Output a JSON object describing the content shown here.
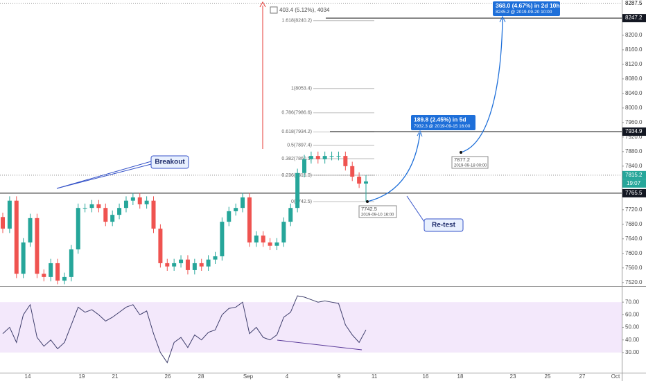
{
  "chart_data": {
    "type": "candlestick",
    "open": [
      7700,
      7668,
      7745,
      7544,
      7630,
      7697,
      7544,
      7535,
      7573,
      7525,
      7535,
      7611,
      7725,
      7725,
      7735,
      7725,
      7687,
      7706,
      7725,
      7745,
      7754,
      7735,
      7745,
      7668,
      7573,
      7564,
      7573,
      7583,
      7554,
      7573,
      7564,
      7583,
      7592,
      7687,
      7716,
      7725,
      7754,
      7630,
      7649,
      7630,
      7621,
      7630,
      7687,
      7725,
      7821,
      7859,
      7868,
      7859,
      7868,
      7868,
      7868,
      7840,
      7811,
      7792
    ],
    "high": [
      7712,
      7757,
      7757,
      7642,
      7709,
      7709,
      7556,
      7585,
      7585,
      7547,
      7623,
      7737,
      7737,
      7747,
      7747,
      7737,
      7718,
      7737,
      7757,
      7766,
      7766,
      7757,
      7757,
      7680,
      7585,
      7585,
      7595,
      7595,
      7585,
      7585,
      7595,
      7604,
      7699,
      7728,
      7737,
      7766,
      7766,
      7661,
      7661,
      7642,
      7642,
      7699,
      7737,
      7833,
      7871,
      7880,
      7880,
      7880,
      7880,
      7880,
      7880,
      7852,
      7823,
      7815
    ],
    "low": [
      7656,
      7656,
      7532,
      7532,
      7618,
      7532,
      7523,
      7523,
      7515,
      7515,
      7523,
      7599,
      7713,
      7713,
      7713,
      7675,
      7675,
      7694,
      7713,
      7733,
      7723,
      7723,
      7656,
      7561,
      7552,
      7552,
      7561,
      7542,
      7542,
      7552,
      7552,
      7571,
      7580,
      7675,
      7704,
      7713,
      7618,
      7618,
      7618,
      7609,
      7609,
      7618,
      7675,
      7713,
      7809,
      7847,
      7847,
      7847,
      7856,
      7856,
      7828,
      7799,
      7780,
      7742.5
    ],
    "close": [
      7668,
      7745,
      7544,
      7630,
      7697,
      7544,
      7535,
      7573,
      7525,
      7535,
      7611,
      7725,
      7725,
      7735,
      7725,
      7687,
      7706,
      7725,
      7745,
      7754,
      7735,
      7745,
      7668,
      7573,
      7564,
      7573,
      7583,
      7554,
      7573,
      7564,
      7583,
      7592,
      7687,
      7716,
      7725,
      7754,
      7630,
      7649,
      7630,
      7621,
      7630,
      7687,
      7725,
      7821,
      7859,
      7868,
      7859,
      7868,
      7868,
      7868,
      7840,
      7811,
      7792,
      7798
    ],
    "up_color": "#26a69a",
    "down_color": "#ef5350",
    "ylim": [
      7510,
      8297
    ],
    "yticks": [
      {
        "value": 7520,
        "label": "7520.0"
      },
      {
        "value": 7560,
        "label": "7560.0"
      },
      {
        "value": 7600,
        "label": "7600.0"
      },
      {
        "value": 7640,
        "label": "7640.0"
      },
      {
        "value": 7680,
        "label": "7680.0"
      },
      {
        "value": 7720,
        "label": "7720.0"
      },
      {
        "value": 7760,
        "label": "7760.0"
      },
      {
        "value": 7800,
        "label": "7800.0"
      },
      {
        "value": 7840,
        "label": "7840.0"
      },
      {
        "value": 7880,
        "label": "7880.0"
      },
      {
        "value": 7920,
        "label": "7920.0"
      },
      {
        "value": 7960,
        "label": "7960.0"
      },
      {
        "value": 8000,
        "label": "8000.0"
      },
      {
        "value": 8040,
        "label": "8040.0"
      },
      {
        "value": 8080,
        "label": "8080.0"
      },
      {
        "value": 8120,
        "label": "8120.0"
      },
      {
        "value": 8160,
        "label": "8160.0"
      },
      {
        "value": 8200,
        "label": "8200.0"
      },
      {
        "value": 8240,
        "label": "8240.0"
      }
    ],
    "price_markers": [
      {
        "value": 8287.5,
        "style": "plain"
      },
      {
        "value": 8247.2,
        "style": "dark"
      },
      {
        "value": 7934.9,
        "style": "dark"
      },
      {
        "value": 7815.2,
        "style": "green"
      },
      {
        "value": 7765.5,
        "style": "dark"
      }
    ],
    "countdown": "19:07",
    "x_labels": [
      "14",
      "19",
      "21",
      "26",
      "28",
      "Sep",
      "4",
      "9",
      "11",
      "16",
      "18",
      "23",
      "25",
      "27",
      "Oct"
    ],
    "rsi": {
      "values": [
        45,
        50,
        38,
        60,
        68,
        42,
        35,
        40,
        33,
        38,
        52,
        66,
        62,
        64,
        60,
        55,
        58,
        62,
        66,
        68,
        60,
        63,
        45,
        30,
        22,
        38,
        42,
        34,
        44,
        40,
        46,
        48,
        60,
        65,
        66,
        70,
        45,
        50,
        42,
        40,
        44,
        58,
        62,
        75,
        74,
        72,
        70,
        71,
        70,
        69,
        52,
        44,
        38,
        48
      ],
      "color": "#3d3d6b",
      "ylim": [
        14,
        80
      ],
      "band": [
        30,
        70
      ],
      "yticks": [
        {
          "value": 30,
          "label": "30.00"
        },
        {
          "value": 40,
          "label": "40.00"
        },
        {
          "value": 50,
          "label": "50.00"
        },
        {
          "value": 60,
          "label": "60.00"
        },
        {
          "value": 70,
          "label": "70.00"
        }
      ]
    },
    "fib": [
      {
        "value": 8240.2,
        "label": "1.618(8240.2)"
      },
      {
        "value": 8053.4,
        "label": "1(8053.4)"
      },
      {
        "value": 7986.6,
        "label": "0.786(7986.6)"
      },
      {
        "value": 7934.2,
        "label": "0.618(7934.2)"
      },
      {
        "value": 7897.4,
        "label": "0.5(7897.4)"
      },
      {
        "value": 7860.5,
        "label": "0.382(7860.5)"
      },
      {
        "value": 7815,
        "label": "0.236(7815.0)"
      },
      {
        "value": 7742.5,
        "label": "0(7742.5)"
      }
    ],
    "annotations": {
      "range": "403.4 (5.12%), 4034",
      "breakout": "Breakout",
      "retest": "Re-test",
      "proj1": {
        "head": "189.8 (2.45%) in 5d",
        "sub": "7932.3 @ 2019-09-15  16:00"
      },
      "proj2": {
        "head": "368.0 (4.67%) in 2d 10h",
        "sub": "8245.2 @ 2019-09-20  10:00"
      },
      "point1": {
        "price": "7877.2",
        "date": "2019-09-18 00:00"
      },
      "point2": {
        "price": "7742.5",
        "date": "2019-09-10 16:00"
      }
    }
  }
}
